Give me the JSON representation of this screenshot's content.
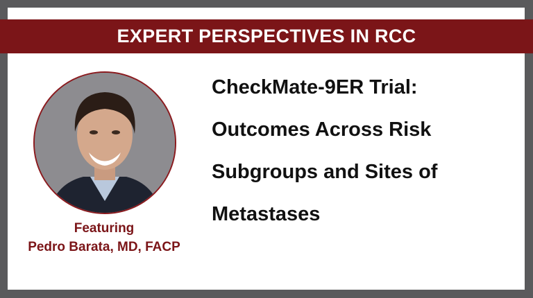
{
  "banner": {
    "title": "EXPERT PERSPECTIVES IN RCC"
  },
  "speaker": {
    "featuring_label": "Featuring",
    "name": "Pedro Barata, MD, FACP"
  },
  "headline": {
    "lines": [
      "CheckMate-9ER Trial:",
      "Outcomes Across Risk",
      "Subgroups and Sites of",
      "Metastases"
    ]
  },
  "colors": {
    "brand_red": "#7b1518",
    "frame_gray": "#5a5a5c"
  }
}
